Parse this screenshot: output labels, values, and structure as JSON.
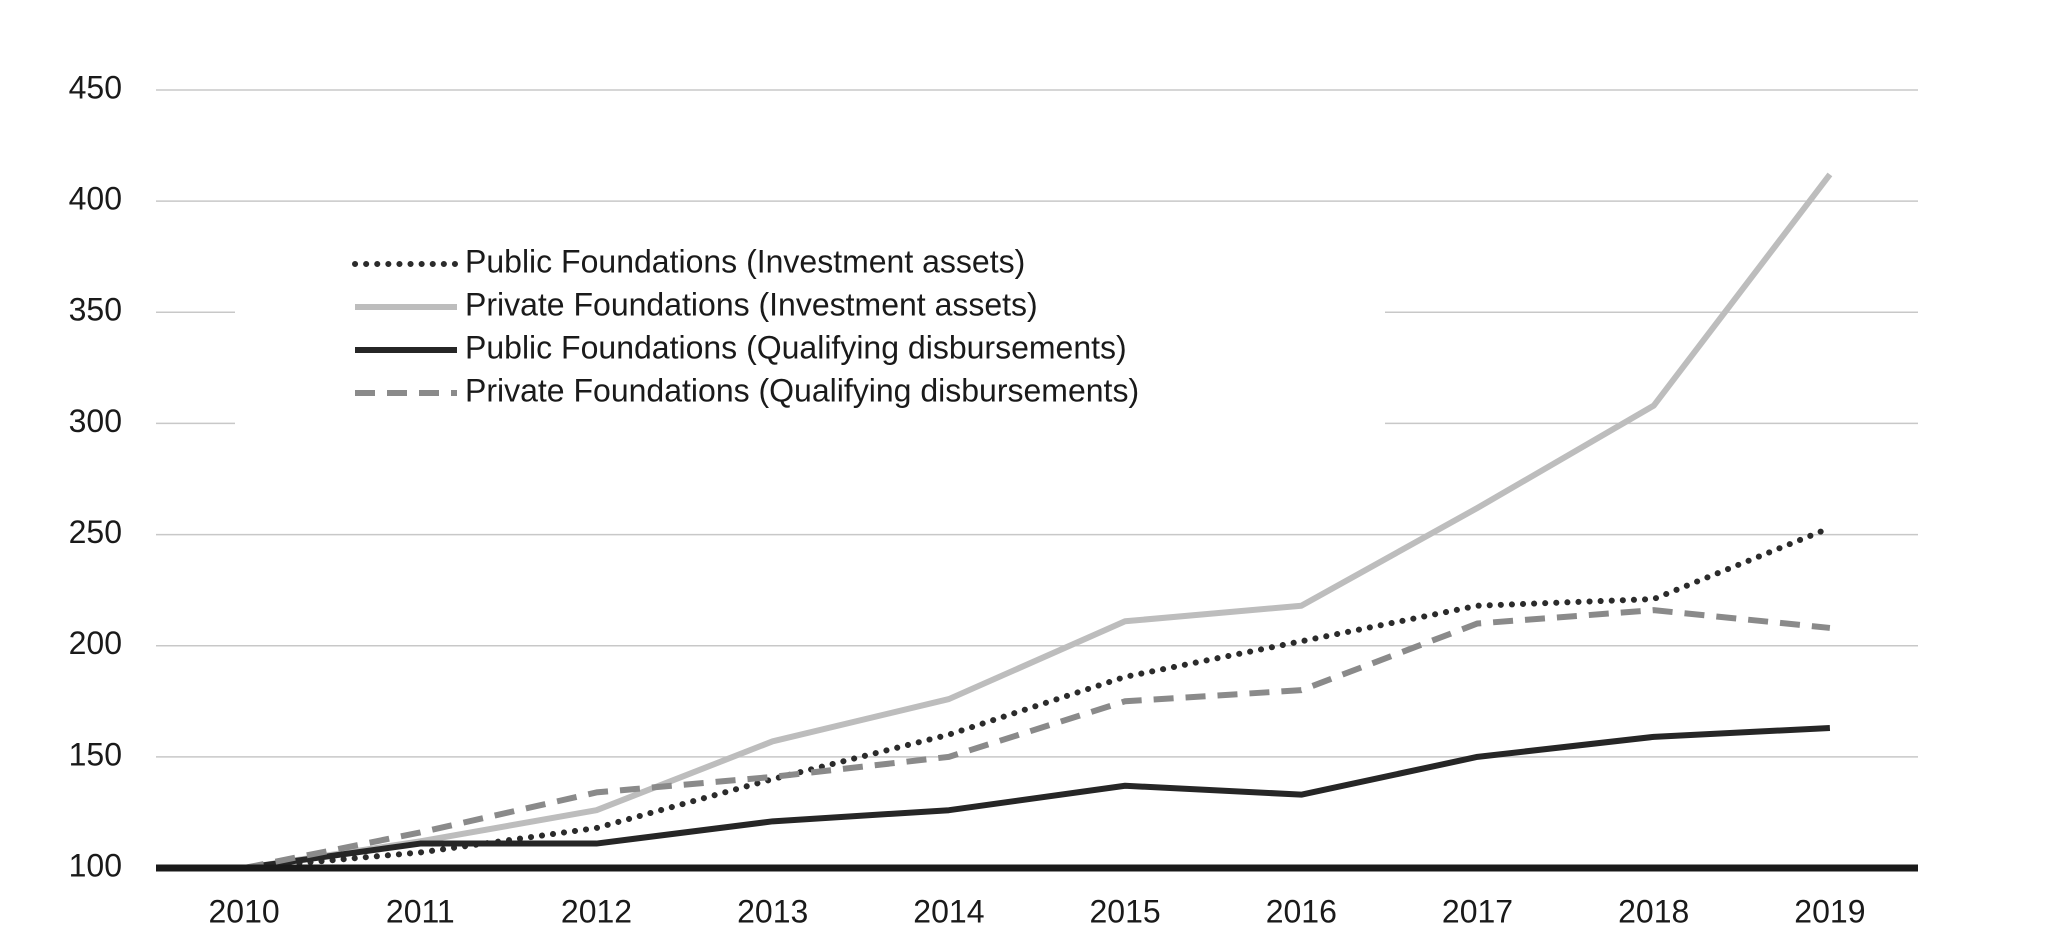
{
  "chart_data": {
    "type": "line",
    "x": [
      "2010",
      "2011",
      "2012",
      "2013",
      "2014",
      "2015",
      "2016",
      "2017",
      "2018",
      "2019"
    ],
    "series": [
      {
        "name": "Public Foundations (Investment assets)",
        "color": "#2b2b2b",
        "style": "dotted",
        "values": [
          100,
          107,
          118,
          140,
          160,
          186,
          202,
          218,
          221,
          253
        ]
      },
      {
        "name": "Private Foundations (Investment assets)",
        "color": "#bdbdbd",
        "style": "solid",
        "values": [
          100,
          112,
          126,
          157,
          176,
          211,
          218,
          262,
          308,
          412
        ]
      },
      {
        "name": "Public Foundations (Qualifying disbursements)",
        "color": "#262626",
        "style": "solid",
        "values": [
          100,
          111,
          111,
          121,
          126,
          137,
          133,
          150,
          159,
          163
        ]
      },
      {
        "name": "Private Foundations (Qualifying disbursements)",
        "color": "#8a8a8a",
        "style": "dashed",
        "values": [
          100,
          116,
          134,
          141,
          150,
          175,
          180,
          210,
          216,
          208
        ]
      }
    ],
    "ylim": [
      100,
      450
    ],
    "yticks": [
      100,
      150,
      200,
      250,
      300,
      350,
      400,
      450
    ],
    "grid": true,
    "legend": "upper left"
  }
}
